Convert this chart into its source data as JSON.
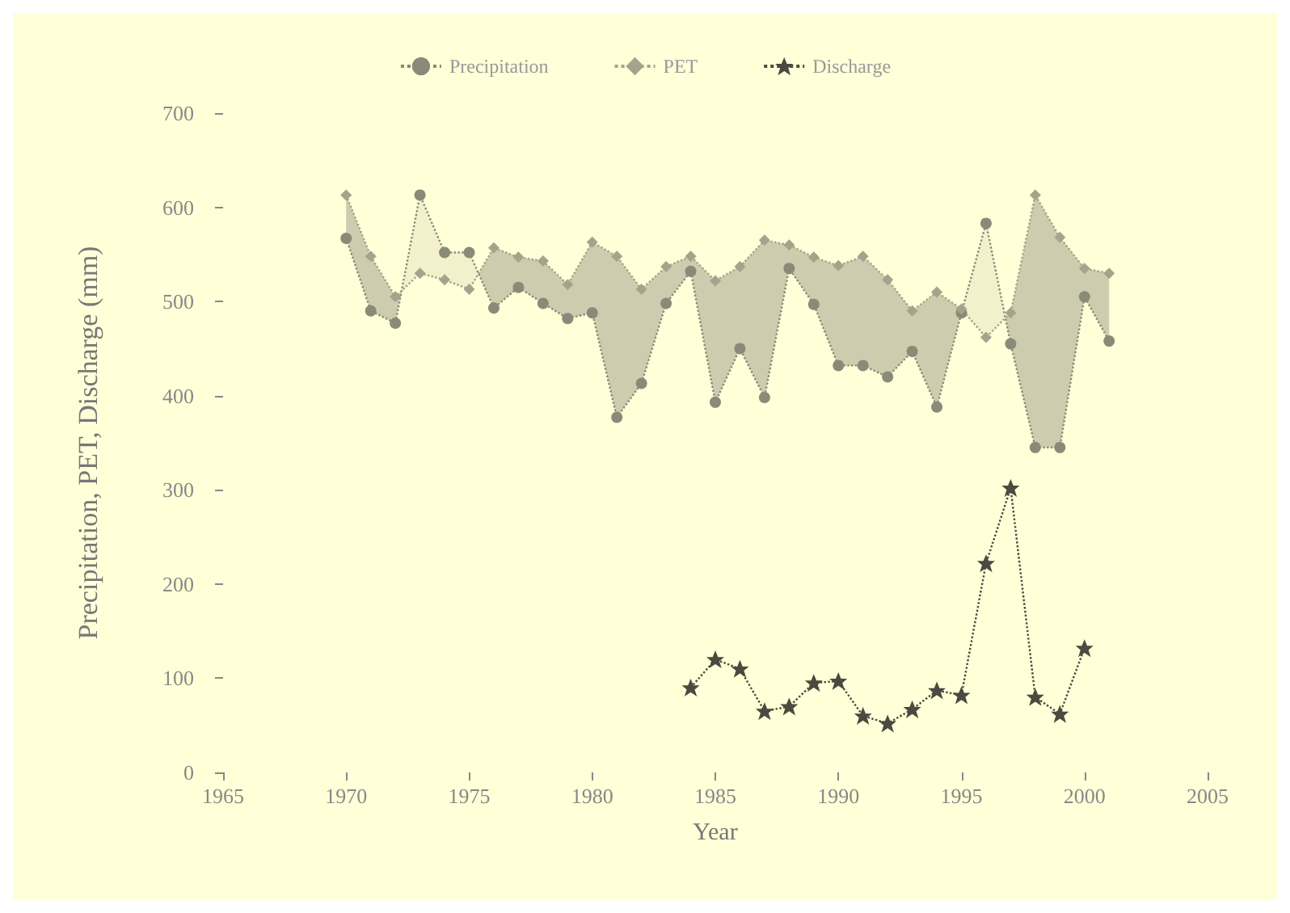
{
  "chart_data": {
    "type": "line",
    "xlabel": "Year",
    "ylabel": "Precipitation, PET, Discharge (mm)",
    "xlim": [
      1965,
      2005
    ],
    "xticks": [
      1965,
      1970,
      1975,
      1980,
      1985,
      1990,
      1995,
      2000,
      2005
    ],
    "ylim": [
      0,
      700
    ],
    "yticks": [
      0,
      100,
      200,
      300,
      400,
      500,
      600,
      700
    ],
    "grid": false,
    "legend": "top",
    "line_style": "dotted",
    "series": [
      {
        "name": "Precipitation",
        "color": "#8a8a78",
        "marker": "circle",
        "x": [
          1970,
          1971,
          1972,
          1973,
          1974,
          1975,
          1976,
          1977,
          1978,
          1979,
          1980,
          1981,
          1982,
          1983,
          1984,
          1985,
          1986,
          1987,
          1988,
          1989,
          1990,
          1991,
          1992,
          1993,
          1994,
          1995,
          1996,
          1997,
          1998,
          1999,
          2000,
          2001
        ],
        "values": [
          567,
          490,
          477,
          613,
          552,
          552,
          493,
          515,
          498,
          482,
          488,
          377,
          413,
          498,
          532,
          393,
          450,
          398,
          535,
          497,
          432,
          432,
          420,
          447,
          388,
          488,
          583,
          455,
          345,
          345,
          505,
          458
        ]
      },
      {
        "name": "PET",
        "color": "#a5a38c",
        "marker": "diamond",
        "x": [
          1970,
          1971,
          1972,
          1973,
          1974,
          1975,
          1976,
          1977,
          1978,
          1979,
          1980,
          1981,
          1982,
          1983,
          1984,
          1985,
          1986,
          1987,
          1988,
          1989,
          1990,
          1991,
          1992,
          1993,
          1994,
          1995,
          1996,
          1997,
          1998,
          1999,
          2000,
          2001
        ],
        "values": [
          613,
          548,
          505,
          530,
          523,
          513,
          557,
          547,
          543,
          518,
          563,
          548,
          513,
          537,
          548,
          522,
          537,
          565,
          560,
          547,
          538,
          548,
          523,
          490,
          510,
          492,
          462,
          488,
          613,
          568,
          535,
          530
        ],
        "upper": [
          613,
          548,
          505,
          530,
          523,
          513,
          557,
          547,
          543,
          518,
          563,
          548,
          513,
          537,
          548,
          522,
          537,
          565,
          560,
          547,
          538,
          548,
          523,
          490,
          510,
          492,
          462,
          488,
          613,
          568,
          535,
          530
        ],
        "lower": [
          567,
          490,
          477,
          613,
          552,
          552,
          493,
          515,
          498,
          482,
          488,
          377,
          413,
          498,
          532,
          393,
          450,
          398,
          535,
          497,
          432,
          432,
          420,
          447,
          388,
          488,
          583,
          455,
          345,
          345,
          505,
          458
        ]
      },
      {
        "name": "Discharge",
        "color": "#4a4a40",
        "marker": "star",
        "x": [
          1984,
          1985,
          1986,
          1987,
          1988,
          1989,
          1990,
          1991,
          1992,
          1993,
          1994,
          1995,
          1996,
          1997,
          1998,
          1999,
          2000
        ],
        "values": [
          90,
          120,
          110,
          65,
          70,
          95,
          97,
          60,
          52,
          67,
          87,
          82,
          222,
          302,
          80,
          62,
          132
        ]
      }
    ]
  }
}
